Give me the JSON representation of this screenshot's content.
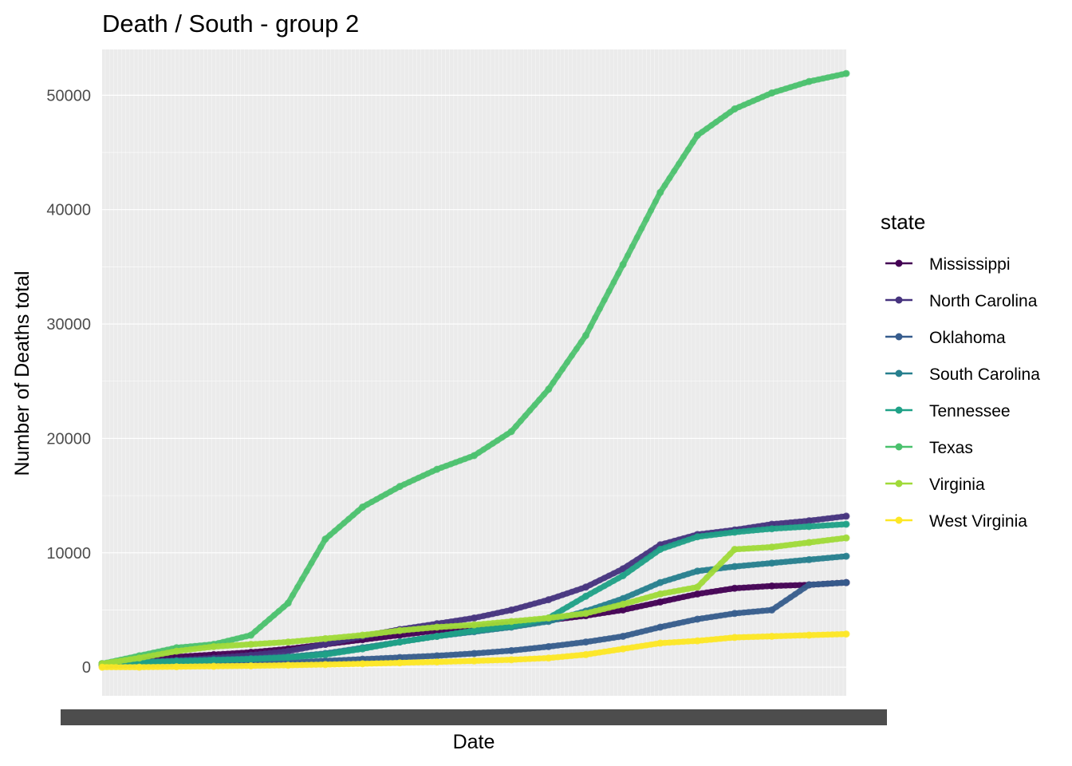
{
  "chart_data": {
    "type": "line",
    "title": "Death / South - group 2",
    "xlabel": "Date",
    "ylabel": "Number of Deaths total",
    "ylim": [
      -2500,
      54000
    ],
    "yticks": [
      0,
      10000,
      20000,
      30000,
      40000,
      50000
    ],
    "x": [
      0,
      5,
      10,
      15,
      20,
      25,
      30,
      35,
      40,
      45,
      50,
      55,
      60,
      65,
      70,
      75,
      80,
      85,
      90,
      95,
      100
    ],
    "legend_title": "state",
    "legend_position": "right",
    "grid": true,
    "series": [
      {
        "name": "Mississippi",
        "color": "#440154",
        "values": [
          300,
          600,
          900,
          1100,
          1300,
          1600,
          2000,
          2400,
          2800,
          3200,
          3500,
          3800,
          4100,
          4500,
          5000,
          5700,
          6400,
          6900,
          7100,
          7200,
          7400
        ]
      },
      {
        "name": "North Carolina",
        "color": "#46337e",
        "values": [
          300,
          450,
          600,
          800,
          1050,
          1400,
          2000,
          2700,
          3300,
          3800,
          4300,
          5000,
          5900,
          7000,
          8600,
          10700,
          11600,
          12000,
          12500,
          12800,
          13200
        ]
      },
      {
        "name": "Oklahoma",
        "color": "#365c8d",
        "values": [
          150,
          200,
          250,
          300,
          350,
          400,
          550,
          700,
          850,
          1000,
          1200,
          1450,
          1800,
          2200,
          2700,
          3500,
          4200,
          4700,
          5000,
          7200,
          7400
        ]
      },
      {
        "name": "South Carolina",
        "color": "#277f8e",
        "values": [
          300,
          450,
          550,
          650,
          750,
          900,
          1200,
          1700,
          2200,
          2700,
          3100,
          3500,
          4000,
          4900,
          6000,
          7400,
          8400,
          8800,
          9100,
          9400,
          9700
        ]
      },
      {
        "name": "Tennessee",
        "color": "#1fa187",
        "values": [
          300,
          400,
          500,
          600,
          700,
          850,
          1100,
          1600,
          2200,
          2700,
          3200,
          3600,
          4300,
          6200,
          8000,
          10300,
          11400,
          11800,
          12100,
          12300,
          12500
        ]
      },
      {
        "name": "Texas",
        "color": "#4ac16d",
        "values": [
          300,
          1000,
          1700,
          2000,
          2800,
          5600,
          11200,
          14000,
          15800,
          17300,
          18500,
          20600,
          24300,
          29000,
          35200,
          41500,
          46500,
          48800,
          50200,
          51200,
          51900
        ]
      },
      {
        "name": "Virginia",
        "color": "#a0da39",
        "values": [
          300,
          800,
          1400,
          1800,
          2000,
          2200,
          2500,
          2800,
          3200,
          3500,
          3700,
          4000,
          4300,
          4700,
          5500,
          6400,
          7000,
          10300,
          10500,
          10900,
          11300
        ]
      },
      {
        "name": "West Virginia",
        "color": "#fde725",
        "values": [
          0,
          0,
          40,
          80,
          120,
          170,
          230,
          300,
          380,
          460,
          550,
          650,
          800,
          1100,
          1600,
          2100,
          2300,
          2600,
          2700,
          2800,
          2900
        ]
      }
    ]
  }
}
